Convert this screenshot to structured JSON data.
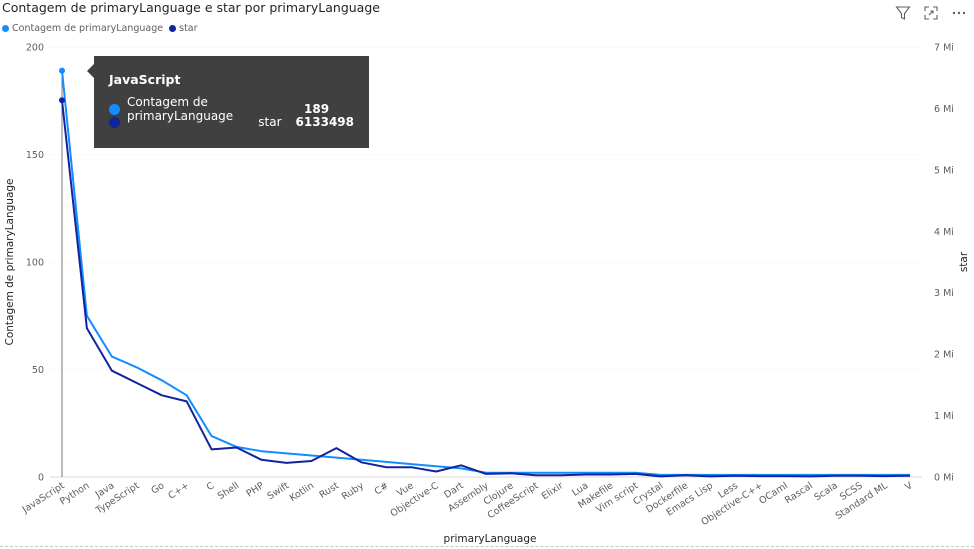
{
  "title": "Contagem de primaryLanguage e star por primaryLanguage",
  "legend": {
    "items": [
      {
        "label": "Contagem de primaryLanguage",
        "color": "#118DFF"
      },
      {
        "label": "star",
        "color": "#12239E"
      }
    ]
  },
  "toolbar": {
    "filter_icon": "filter-icon",
    "focus_icon": "focus-mode-icon",
    "more_icon": "more-options-icon"
  },
  "tooltip": {
    "title": "JavaScript",
    "rows": [
      {
        "label": "Contagem de primaryLanguage",
        "value": "189",
        "color": "#118DFF"
      },
      {
        "label": "star",
        "value": "6133498",
        "color": "#12239E"
      }
    ]
  },
  "chart_data": {
    "type": "line",
    "xlabel": "primaryLanguage",
    "ylabel": "Contagem de primaryLanguage",
    "y2label": "star",
    "categories": [
      "JavaScript",
      "Python",
      "Java",
      "TypeScript",
      "Go",
      "C++",
      "C",
      "Shell",
      "PHP",
      "Swift",
      "Kotlin",
      "Rust",
      "Ruby",
      "C#",
      "Vue",
      "Objective-C",
      "Dart",
      "Assembly",
      "Clojure",
      "CoffeeScript",
      "Elixir",
      "Lua",
      "Makefile",
      "Vim script",
      "Crystal",
      "Dockerfile",
      "Emacs Lisp",
      "Less",
      "Objective-C++",
      "OCaml",
      "Rascal",
      "Scala",
      "SCSS",
      "Standard ML",
      "V"
    ],
    "ylim": [
      0,
      200
    ],
    "yticks": [
      "0",
      "50",
      "100",
      "150",
      "200"
    ],
    "y2lim": [
      0,
      7000000
    ],
    "y2ticks": [
      "0 Mi",
      "1 Mi",
      "2 Mi",
      "3 Mi",
      "4 Mi",
      "5 Mi",
      "6 Mi",
      "7 Mi"
    ],
    "series": [
      {
        "name": "Contagem de primaryLanguage",
        "axis": "left",
        "color": "#118DFF",
        "values": [
          189,
          75,
          56,
          51,
          45,
          38,
          19,
          14,
          12,
          11,
          10,
          9,
          8,
          7,
          6,
          5,
          4,
          2,
          2,
          2,
          2,
          2,
          2,
          2,
          1,
          1,
          1,
          1,
          1,
          1,
          1,
          1,
          1,
          1,
          1
        ]
      },
      {
        "name": "star",
        "axis": "right",
        "color": "#12239E",
        "values": [
          6133498,
          2420000,
          1730000,
          1530000,
          1330000,
          1230000,
          450000,
          480000,
          280000,
          230000,
          260000,
          470000,
          240000,
          160000,
          160000,
          90000,
          190000,
          50000,
          60000,
          30000,
          30000,
          40000,
          40000,
          50000,
          10000,
          30000,
          10000,
          20000,
          15000,
          15000,
          10000,
          20000,
          20000,
          15000,
          20000
        ]
      }
    ],
    "highlight_category": "JavaScript",
    "grid": true,
    "legend_position": "top-left"
  }
}
